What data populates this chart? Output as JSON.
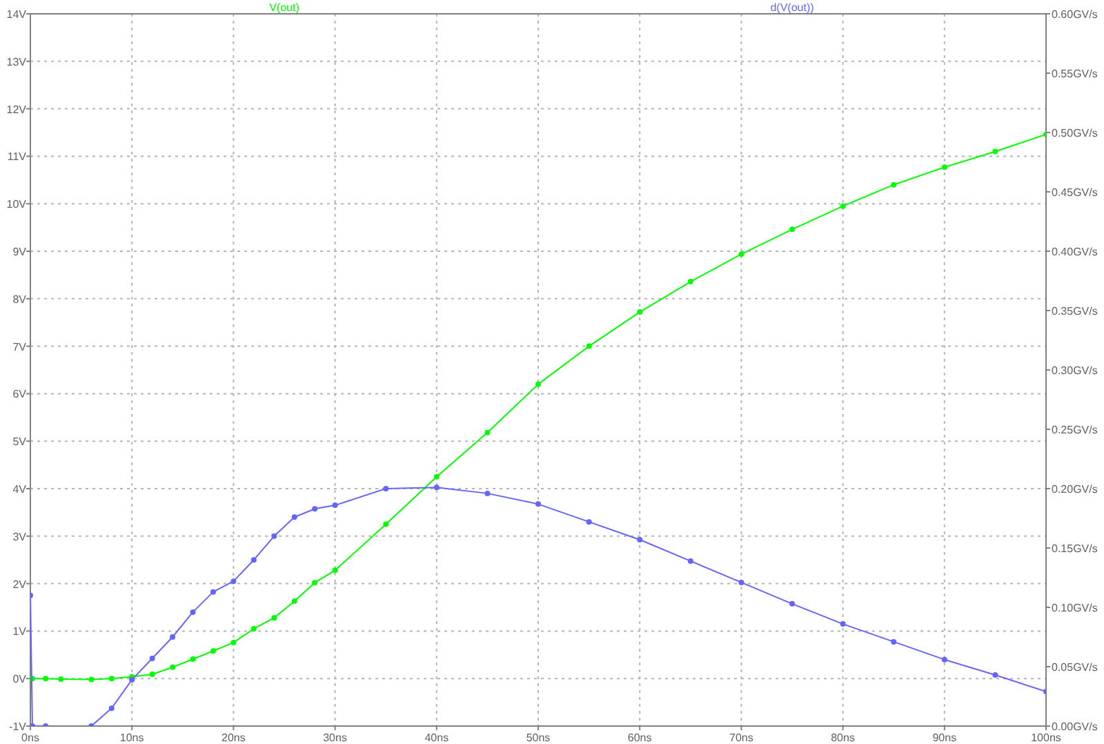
{
  "chart_data": {
    "type": "line",
    "x": [
      0,
      0.2,
      1.5,
      3,
      6,
      8,
      10,
      12,
      14,
      16,
      18,
      20,
      22,
      24,
      26,
      28,
      30,
      35,
      40,
      45,
      50,
      55,
      60,
      65,
      70,
      75,
      80,
      85,
      90,
      95,
      100
    ],
    "series": [
      {
        "name": "V(out)",
        "color": "#00ff00",
        "values": [
          0,
          0,
          0,
          -0.01,
          -0.02,
          0,
          0.04,
          0.09,
          0.24,
          0.41,
          0.58,
          0.76,
          1.05,
          1.28,
          1.63,
          2.02,
          2.28,
          3.25,
          4.25,
          5.18,
          6.2,
          7.0,
          7.72,
          8.36,
          8.94,
          9.46,
          9.95,
          10.4,
          10.77,
          11.1,
          11.46
        ]
      },
      {
        "name": "d(V(out))",
        "color": "#6464ff",
        "axis": "y2",
        "values": [
          0.11,
          0,
          0,
          null,
          0,
          0.015,
          0.039,
          0.057,
          0.075,
          0.096,
          0.113,
          0.122,
          0.14,
          0.16,
          0.176,
          0.183,
          0.186,
          0.2,
          0.201,
          0.196,
          0.187,
          0.172,
          0.157,
          0.139,
          0.121,
          0.103,
          0.086,
          0.071,
          0.056,
          0.043,
          0.029
        ]
      }
    ],
    "xlim": [
      0,
      100
    ],
    "xticks": [
      {
        "value": 0,
        "label": "0ns"
      },
      {
        "value": 10,
        "label": "10ns"
      },
      {
        "value": 20,
        "label": "20ns"
      },
      {
        "value": 30,
        "label": "30ns"
      },
      {
        "value": 40,
        "label": "40ns"
      },
      {
        "value": 50,
        "label": "50ns"
      },
      {
        "value": 60,
        "label": "60ns"
      },
      {
        "value": 70,
        "label": "70ns"
      },
      {
        "value": 80,
        "label": "80ns"
      },
      {
        "value": 90,
        "label": "90ns"
      },
      {
        "value": 100,
        "label": "100ns"
      }
    ],
    "ylim": [
      -1,
      14
    ],
    "yticks": [
      {
        "value": -1,
        "label": "-1V"
      },
      {
        "value": 0,
        "label": "0V"
      },
      {
        "value": 1,
        "label": "1V"
      },
      {
        "value": 2,
        "label": "2V"
      },
      {
        "value": 3,
        "label": "3V"
      },
      {
        "value": 4,
        "label": "4V"
      },
      {
        "value": 5,
        "label": "5V"
      },
      {
        "value": 6,
        "label": "6V"
      },
      {
        "value": 7,
        "label": "7V"
      },
      {
        "value": 8,
        "label": "8V"
      },
      {
        "value": 9,
        "label": "9V"
      },
      {
        "value": 10,
        "label": "10V"
      },
      {
        "value": 11,
        "label": "11V"
      },
      {
        "value": 12,
        "label": "12V"
      },
      {
        "value": 13,
        "label": "13V"
      },
      {
        "value": 14,
        "label": "14V"
      }
    ],
    "y2lim": [
      0,
      0.6
    ],
    "y2ticks": [
      {
        "value": 0,
        "label": "0.00GV/s"
      },
      {
        "value": 0.05,
        "label": "0.05GV/s"
      },
      {
        "value": 0.1,
        "label": "0.10GV/s"
      },
      {
        "value": 0.15,
        "label": "0.15GV/s"
      },
      {
        "value": 0.2,
        "label": "0.20GV/s"
      },
      {
        "value": 0.25,
        "label": "0.25GV/s"
      },
      {
        "value": 0.3,
        "label": "0.30GV/s"
      },
      {
        "value": 0.35,
        "label": "0.35GV/s"
      },
      {
        "value": 0.4,
        "label": "0.40GV/s"
      },
      {
        "value": 0.45,
        "label": "0.45GV/s"
      },
      {
        "value": 0.5,
        "label": "0.50GV/s"
      },
      {
        "value": 0.55,
        "label": "0.55GV/s"
      },
      {
        "value": 0.6,
        "label": "0.60GV/s"
      }
    ],
    "grid": true,
    "legend": "top",
    "marker": "circle",
    "line_style": "solid"
  }
}
